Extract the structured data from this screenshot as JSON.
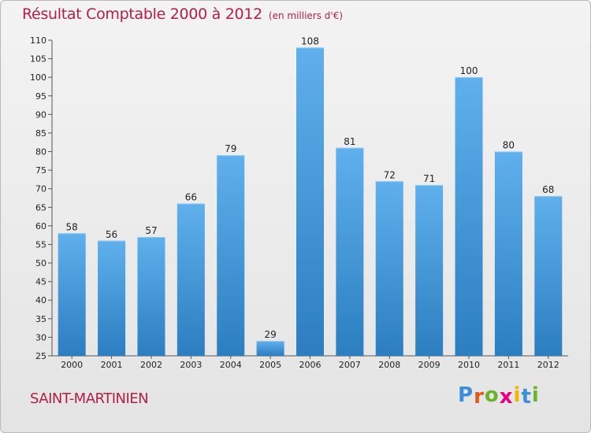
{
  "title": "Résultat Comptable 2000 à 2012",
  "subtitle": "(en milliers d'€)",
  "commune": "SAINT-MARTINIEN",
  "logo": {
    "letters": [
      "P",
      "r",
      "o",
      "x",
      "i",
      "t",
      "i"
    ],
    "colors": [
      "#3a8fd9",
      "#e05a1b",
      "#6ab42c",
      "#e5007e",
      "#f0b400",
      "#3a8fd9",
      "#6ab42c"
    ]
  },
  "colors": {
    "bar_top": "#5fb0ec",
    "bar_bottom": "#2b7ec0",
    "text": "#222222",
    "accent": "#b0204a"
  },
  "chart_data": {
    "type": "bar",
    "categories": [
      "2000",
      "2001",
      "2002",
      "2003",
      "2004",
      "2005",
      "2006",
      "2007",
      "2008",
      "2009",
      "2010",
      "2011",
      "2012"
    ],
    "values": [
      58,
      56,
      57,
      66,
      79,
      29,
      108,
      81,
      72,
      71,
      100,
      80,
      68
    ],
    "ylim": [
      25,
      110
    ],
    "yticks": [
      25,
      30,
      35,
      40,
      45,
      50,
      55,
      60,
      65,
      70,
      75,
      80,
      85,
      90,
      95,
      100,
      105,
      110
    ],
    "grid": false,
    "data_labels": true
  }
}
